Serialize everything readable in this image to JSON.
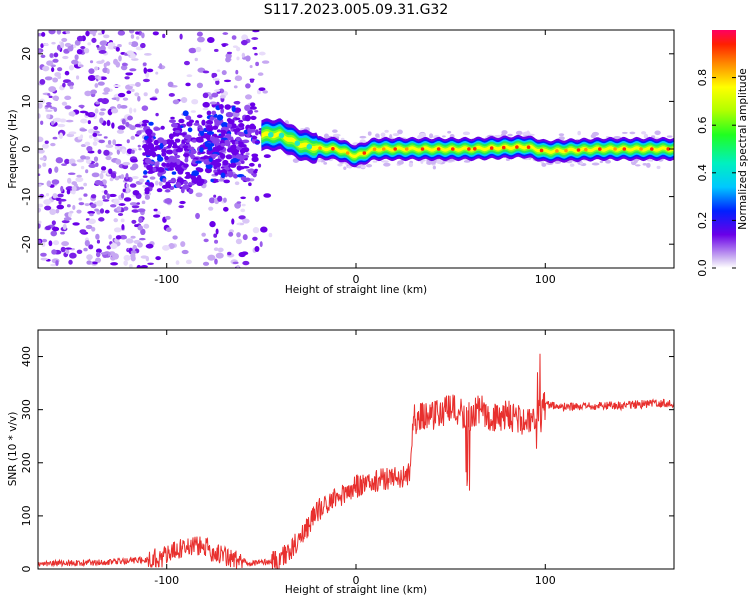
{
  "figure": {
    "title": "S117.2023.005.09.31.G32"
  },
  "colors": {
    "signal": "#e8302e",
    "frame": "#000000",
    "background": "#ffffff"
  },
  "chart_data": [
    {
      "type": "heatmap",
      "xlabel": "Height of straight line (km)",
      "ylabel": "Frequency (Hz)",
      "xlim": [
        -168,
        168
      ],
      "ylim": [
        -25,
        25
      ],
      "xticks": [
        -100,
        0,
        100
      ],
      "yticks": [
        -20,
        -10,
        0,
        10,
        20
      ],
      "grid": false,
      "colorbar": {
        "label": "Normalized spectral amplitude",
        "range": [
          0,
          1
        ],
        "ticks": [
          0.0,
          0.2,
          0.4,
          0.6,
          0.8
        ],
        "colormap": "rainbow"
      },
      "ridge": {
        "x": [
          -50,
          -40,
          -35,
          -30,
          -25,
          -20,
          -10,
          0,
          10,
          30,
          60,
          90,
          100,
          130,
          168
        ],
        "y": [
          3,
          3,
          2,
          1,
          0.5,
          0.2,
          0,
          -1.5,
          0,
          0,
          0,
          0.5,
          -0.5,
          0,
          0
        ]
      }
    },
    {
      "type": "line",
      "xlabel": "Height of straight line (km)",
      "ylabel": "SNR (10 * v/v)",
      "xlim": [
        -168,
        168
      ],
      "ylim": [
        0,
        450
      ],
      "xticks": [
        -100,
        0,
        100
      ],
      "yticks": [
        0,
        100,
        200,
        300,
        400
      ],
      "grid": false,
      "series": [
        {
          "x": [
            -168,
            -140,
            -120,
            -110,
            -100,
            -95,
            -90,
            -85,
            -80,
            -75,
            -70,
            -65,
            -60,
            -55,
            -50,
            -45,
            -40,
            -35,
            -30,
            -25,
            -20,
            -15,
            -10,
            -5,
            0,
            5,
            10,
            15,
            20,
            25,
            28,
            30,
            35,
            40,
            45,
            50,
            55,
            60,
            65,
            70,
            75,
            80,
            85,
            90,
            95,
            97,
            100,
            110,
            120,
            130,
            140,
            150,
            160,
            168
          ],
          "y": [
            10,
            12,
            15,
            18,
            25,
            35,
            42,
            45,
            40,
            32,
            25,
            18,
            15,
            12,
            12,
            14,
            18,
            35,
            55,
            85,
            110,
            125,
            135,
            145,
            155,
            160,
            165,
            170,
            172,
            175,
            178,
            280,
            290,
            290,
            295,
            300,
            295,
            285,
            300,
            290,
            280,
            290,
            285,
            275,
            270,
            300,
            310,
            305,
            305,
            308,
            308,
            310,
            312,
            312
          ]
        }
      ]
    }
  ]
}
